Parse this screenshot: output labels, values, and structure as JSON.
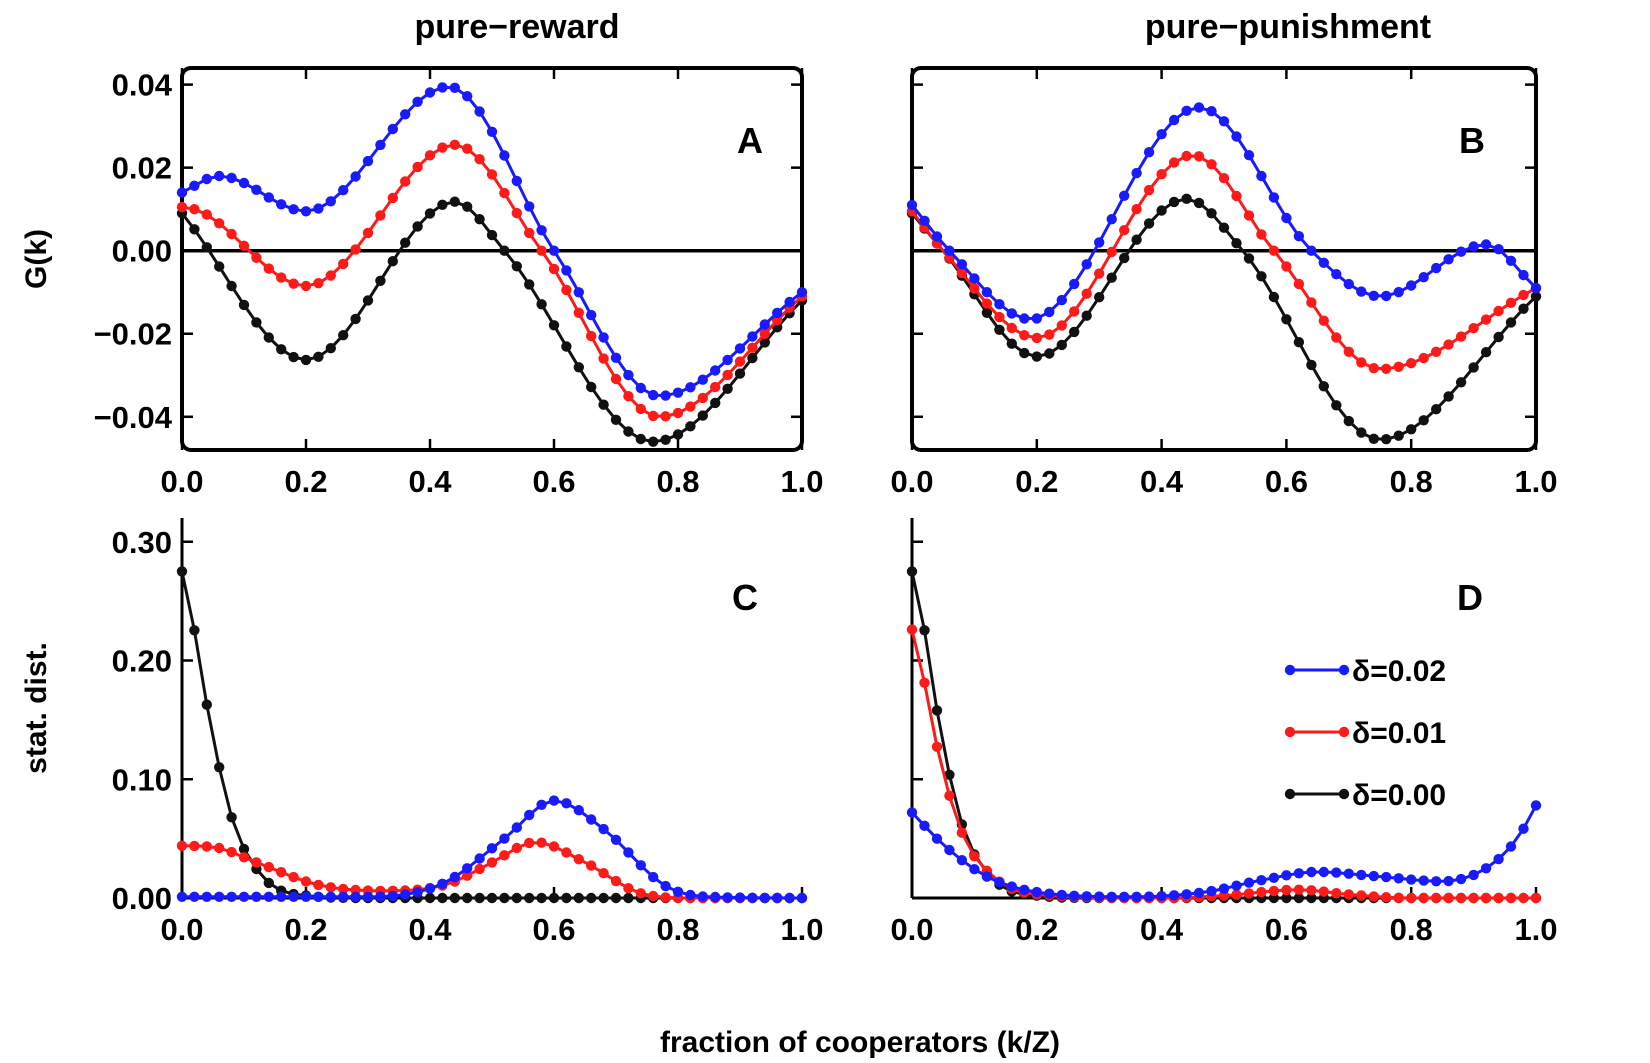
{
  "figure": {
    "col_titles": [
      "pure−reward",
      "pure−punishment"
    ],
    "xlabel": "fraction of cooperators (k/Z)",
    "legend": [
      {
        "label": "δ=0.02",
        "color": "#1a1aff"
      },
      {
        "label": "δ=0.01",
        "color": "#ff1a1a"
      },
      {
        "label": "δ=0.00",
        "color": "#111111"
      }
    ]
  },
  "chart_data": [
    {
      "type": "line",
      "panel_label": "A",
      "title": "pure−reward",
      "xlabel": "",
      "ylabel": "G(k)",
      "xlim": [
        0,
        1
      ],
      "ylim": [
        -0.048,
        0.044
      ],
      "xticks": [
        "0.0",
        "0.2",
        "0.4",
        "0.6",
        "0.8",
        "1.0"
      ],
      "yticks": [
        "0.04",
        "0.02",
        "0.00",
        "−0.02",
        "−0.04"
      ],
      "ytick_values": [
        0.04,
        0.02,
        0.0,
        -0.02,
        -0.04
      ],
      "frame": "box",
      "zero_line": true,
      "series": [
        {
          "name": "δ=0.02",
          "color": "#1a1aff",
          "knots": [
            [
              0,
              0.014
            ],
            [
              0.06,
              0.018
            ],
            [
              0.2,
              0.0095
            ],
            [
              0.43,
              0.0395
            ],
            [
              0.6,
              0.0
            ],
            [
              0.77,
              -0.035
            ],
            [
              1.0,
              -0.01
            ]
          ]
        },
        {
          "name": "δ=0.01",
          "color": "#ff1a1a",
          "knots": [
            [
              0,
              0.0105
            ],
            [
              0.03,
              0.0095
            ],
            [
              0.2,
              -0.0085
            ],
            [
              0.44,
              0.0255
            ],
            [
              0.58,
              0.0
            ],
            [
              0.77,
              -0.04
            ],
            [
              1.0,
              -0.011
            ]
          ]
        },
        {
          "name": "δ=0.00",
          "color": "#111111",
          "knots": [
            [
              0,
              0.009
            ],
            [
              0.2,
              -0.0263
            ],
            [
              0.44,
              0.0118
            ],
            [
              0.52,
              0.0
            ],
            [
              0.76,
              -0.046
            ],
            [
              1.0,
              -0.012
            ]
          ]
        }
      ]
    },
    {
      "type": "line",
      "panel_label": "B",
      "title": "pure−punishment",
      "xlabel": "",
      "ylabel": "",
      "xlim": [
        0,
        1
      ],
      "ylim": [
        -0.048,
        0.044
      ],
      "xticks": [
        "0.0",
        "0.2",
        "0.4",
        "0.6",
        "0.8",
        "1.0"
      ],
      "yticks": [
        "",
        "",
        "",
        "",
        ""
      ],
      "ytick_values": [
        0.04,
        0.02,
        0.0,
        -0.02,
        -0.04
      ],
      "frame": "box",
      "zero_line": true,
      "series": [
        {
          "name": "δ=0.02",
          "color": "#1a1aff",
          "knots": [
            [
              0,
              0.011
            ],
            [
              0.06,
              0.0
            ],
            [
              0.19,
              -0.0165
            ],
            [
              0.46,
              0.0345
            ],
            [
              0.64,
              0.0
            ],
            [
              0.75,
              -0.011
            ],
            [
              0.92,
              0.0015
            ],
            [
              1.0,
              -0.009
            ]
          ]
        },
        {
          "name": "δ=0.01",
          "color": "#ff1a1a",
          "knots": [
            [
              0,
              0.0095
            ],
            [
              0.05,
              0.0
            ],
            [
              0.2,
              -0.021
            ],
            [
              0.45,
              0.023
            ],
            [
              0.58,
              0.0
            ],
            [
              0.75,
              -0.0285
            ],
            [
              1.0,
              -0.009
            ]
          ]
        },
        {
          "name": "δ=0.00",
          "color": "#111111",
          "knots": [
            [
              0,
              0.009
            ],
            [
              0.05,
              0.0
            ],
            [
              0.2,
              -0.0255
            ],
            [
              0.44,
              0.0125
            ],
            [
              0.53,
              0.0
            ],
            [
              0.75,
              -0.0455
            ],
            [
              1.0,
              -0.011
            ]
          ]
        }
      ]
    },
    {
      "type": "line",
      "panel_label": "C",
      "title": "",
      "xlabel": "fraction of cooperators (k/Z)",
      "ylabel": "stat. dist.",
      "xlim": [
        0,
        1
      ],
      "ylim": [
        0,
        0.32
      ],
      "xticks": [
        "0.0",
        "0.2",
        "0.4",
        "0.6",
        "0.8",
        "1.0"
      ],
      "yticks": [
        "0.30",
        "0.20",
        "0.10",
        "0.00"
      ],
      "ytick_values": [
        0.3,
        0.2,
        0.1,
        0.0
      ],
      "frame": "L",
      "zero_line": false,
      "series": [
        {
          "name": "δ=0.02",
          "color": "#1a1aff",
          "knots": [
            [
              0,
              0.001
            ],
            [
              0.3,
              0.001
            ],
            [
              0.42,
              0.012
            ],
            [
              0.52,
              0.05
            ],
            [
              0.6,
              0.082
            ],
            [
              0.68,
              0.058
            ],
            [
              0.78,
              0.01
            ],
            [
              0.85,
              0.001
            ],
            [
              1.0,
              0.0
            ]
          ]
        },
        {
          "name": "δ=0.01",
          "color": "#ff1a1a",
          "knots": [
            [
              0,
              0.044
            ],
            [
              0.05,
              0.043
            ],
            [
              0.12,
              0.03
            ],
            [
              0.22,
              0.011
            ],
            [
              0.33,
              0.006
            ],
            [
              0.43,
              0.012
            ],
            [
              0.5,
              0.03
            ],
            [
              0.57,
              0.047
            ],
            [
              0.65,
              0.03
            ],
            [
              0.74,
              0.004
            ],
            [
              0.82,
              0.0
            ],
            [
              1.0,
              0.0
            ]
          ]
        },
        {
          "name": "δ=0.00",
          "color": "#111111",
          "knots": [
            [
              0,
              0.275
            ],
            [
              0.0205,
              0.224
            ],
            [
              0.041,
              0.16
            ],
            [
              0.08,
              0.068
            ],
            [
              0.13,
              0.018
            ],
            [
              0.2,
              0.002
            ],
            [
              0.3,
              0.0
            ],
            [
              1.0,
              0.0
            ]
          ]
        }
      ]
    },
    {
      "type": "line",
      "panel_label": "D",
      "title": "",
      "xlabel": "",
      "ylabel": "",
      "xlim": [
        0,
        1
      ],
      "ylim": [
        0,
        0.32
      ],
      "xticks": [
        "0.0",
        "0.2",
        "0.4",
        "0.6",
        "0.8",
        "1.0"
      ],
      "yticks": [
        "",
        "",
        "",
        ""
      ],
      "ytick_values": [
        0.3,
        0.2,
        0.1,
        0.0
      ],
      "frame": "L",
      "zero_line": false,
      "legend_position": "right-middle",
      "series": [
        {
          "name": "δ=0.02",
          "color": "#1a1aff",
          "knots": [
            [
              0,
              0.072
            ],
            [
              0.05,
              0.045
            ],
            [
              0.12,
              0.018
            ],
            [
              0.2,
              0.005
            ],
            [
              0.35,
              0.001
            ],
            [
              0.47,
              0.005
            ],
            [
              0.56,
              0.015
            ],
            [
              0.65,
              0.022
            ],
            [
              0.75,
              0.018
            ],
            [
              0.85,
              0.014
            ],
            [
              0.92,
              0.025
            ],
            [
              0.97,
              0.05
            ],
            [
              1.0,
              0.078
            ]
          ]
        },
        {
          "name": "δ=0.01",
          "color": "#ff1a1a",
          "knots": [
            [
              0,
              0.226
            ],
            [
              0.0205,
              0.18
            ],
            [
              0.041,
              0.125
            ],
            [
              0.08,
              0.055
            ],
            [
              0.13,
              0.018
            ],
            [
              0.2,
              0.003
            ],
            [
              0.4,
              0.0
            ],
            [
              0.5,
              0.002
            ],
            [
              0.62,
              0.007
            ],
            [
              0.7,
              0.003
            ],
            [
              0.8,
              0.0
            ],
            [
              1.0,
              0.0
            ]
          ]
        },
        {
          "name": "δ=0.00",
          "color": "#111111",
          "knots": [
            [
              0,
              0.275
            ],
            [
              0.0205,
              0.224
            ],
            [
              0.041,
              0.155
            ],
            [
              0.08,
              0.062
            ],
            [
              0.13,
              0.016
            ],
            [
              0.2,
              0.002
            ],
            [
              0.3,
              0.0
            ],
            [
              1.0,
              0.0
            ]
          ]
        }
      ]
    }
  ]
}
